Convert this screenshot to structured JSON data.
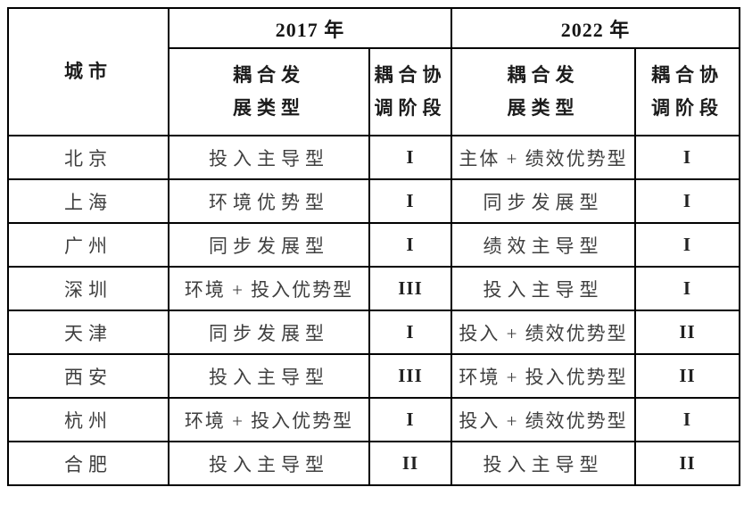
{
  "table": {
    "header": {
      "city": "城市",
      "year_2017": "2017 年",
      "year_2022": "2022 年",
      "type_label_2017": "耦合发\n展类型",
      "stage_label_2017": "耦合协\n调阶段",
      "type_label_2022": "耦合发\n展类型",
      "stage_label_2022": "耦合协\n调阶段"
    },
    "rows": [
      {
        "city": "北京",
        "type_2017": "投入主导型",
        "stage_2017": "I",
        "type_2022": "主体 + 绩效优势型",
        "stage_2022": "I"
      },
      {
        "city": "上海",
        "type_2017": "环境优势型",
        "stage_2017": "I",
        "type_2022": "同步发展型",
        "stage_2022": "I"
      },
      {
        "city": "广州",
        "type_2017": "同步发展型",
        "stage_2017": "I",
        "type_2022": "绩效主导型",
        "stage_2022": "I"
      },
      {
        "city": "深圳",
        "type_2017": "环境 + 投入优势型",
        "stage_2017": "III",
        "type_2022": "投入主导型",
        "stage_2022": "I"
      },
      {
        "city": "天津",
        "type_2017": "同步发展型",
        "stage_2017": "I",
        "type_2022": "投入 + 绩效优势型",
        "stage_2022": "II"
      },
      {
        "city": "西安",
        "type_2017": "投入主导型",
        "stage_2017": "III",
        "type_2022": "环境 + 投入优势型",
        "stage_2022": "II"
      },
      {
        "city": "杭州",
        "type_2017": "环境 + 投入优势型",
        "stage_2017": "I",
        "type_2022": "投入 + 绩效优势型",
        "stage_2022": "I"
      },
      {
        "city": "合肥",
        "type_2017": "投入主导型",
        "stage_2017": "II",
        "type_2022": "投入主导型",
        "stage_2022": "II"
      }
    ]
  },
  "colors": {
    "background": "#ffffff",
    "border": "#000000",
    "header_text": "#1c1c1c",
    "body_text": "#3f3f3f"
  }
}
